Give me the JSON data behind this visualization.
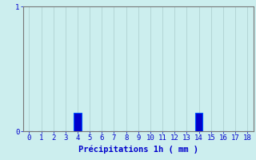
{
  "categories": [
    0,
    1,
    2,
    3,
    4,
    5,
    6,
    7,
    8,
    9,
    10,
    11,
    12,
    13,
    14,
    15,
    16,
    17,
    18
  ],
  "values": [
    0,
    0,
    0,
    0,
    0.15,
    0,
    0,
    0,
    0,
    0,
    0,
    0,
    0,
    0,
    0.15,
    0,
    0,
    0,
    0
  ],
  "bar_color": "#0000cc",
  "bar_edge_color": "#0055ff",
  "background_color": "#cceeee",
  "xlabel": "Précipitations 1h ( mm )",
  "xlabel_color": "#0000cc",
  "xlabel_fontsize": 7.5,
  "tick_color": "#0000cc",
  "tick_fontsize": 6.5,
  "ylim": [
    0,
    1.0
  ],
  "xlim": [
    -0.5,
    18.5
  ],
  "yticks": [
    0,
    1
  ],
  "grid_color": "#aacccc",
  "spine_color": "#777777"
}
